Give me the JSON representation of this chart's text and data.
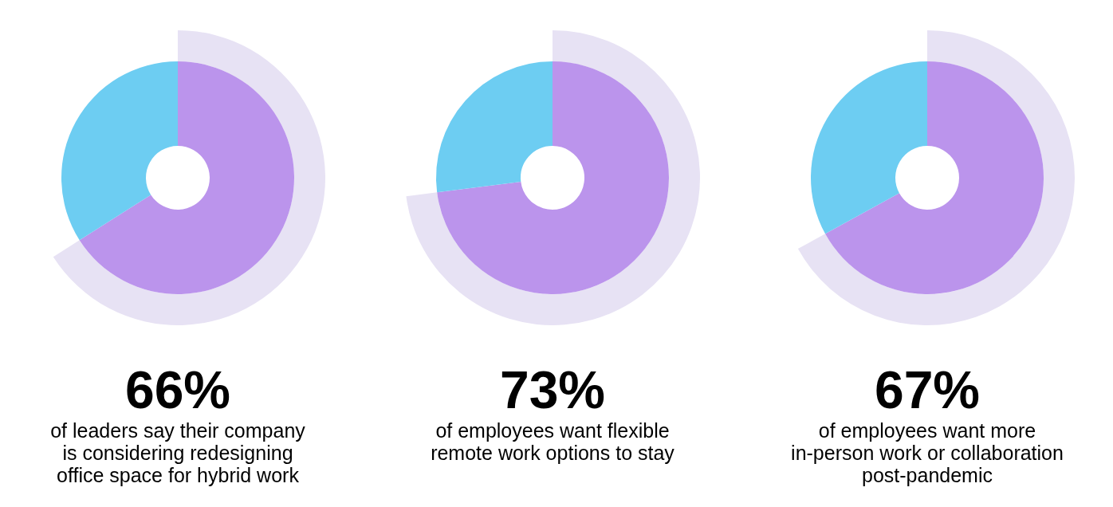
{
  "chart_data": [
    {
      "type": "donut",
      "title": "66%",
      "subtitle": "of leaders say their company\nis considering redesigning\noffice space for hybrid work",
      "categories": [
        null,
        null
      ],
      "values": [
        66,
        34
      ],
      "colors": [
        "#bb94ec",
        "#6dcdf2"
      ]
    },
    {
      "type": "donut",
      "title": "73%",
      "subtitle": "of employees want flexible\nremote work options to stay",
      "categories": [
        null,
        null
      ],
      "values": [
        73,
        27
      ],
      "colors": [
        "#bb94ec",
        "#6dcdf2"
      ]
    },
    {
      "type": "donut",
      "title": "67%",
      "subtitle": "of employees want more\nin-person work or collaboration\npost-pandemic",
      "categories": [
        null,
        null
      ],
      "values": [
        67,
        33
      ],
      "colors": [
        "#bb94ec",
        "#6dcdf2"
      ]
    }
  ]
}
